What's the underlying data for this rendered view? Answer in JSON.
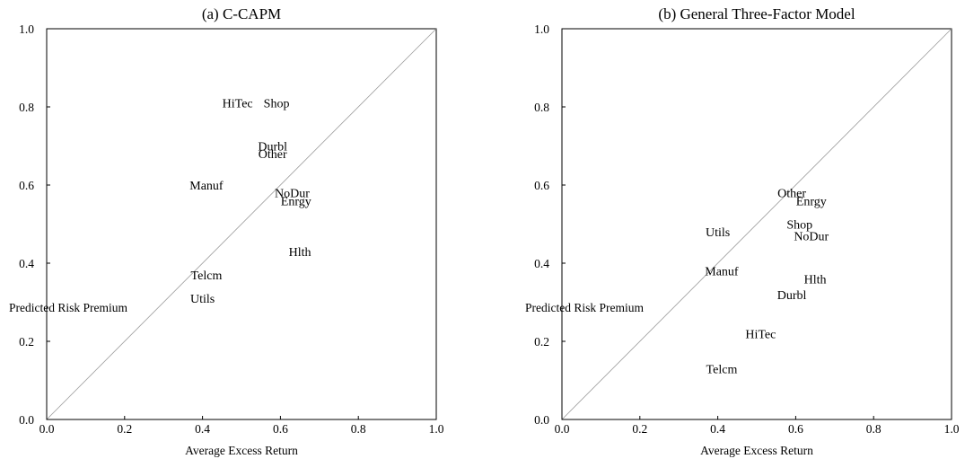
{
  "chart_data": [
    {
      "type": "scatter",
      "title": "(a) C-CAPM",
      "xlabel": "Average Excess Return",
      "ylabel": "Predicted Risk Premium",
      "xlim": [
        0,
        1
      ],
      "ylim": [
        0,
        1
      ],
      "xticks": [
        "0.0",
        "0.2",
        "0.4",
        "0.6",
        "0.8",
        "1.0"
      ],
      "yticks": [
        "0.0",
        "0.2",
        "0.4",
        "0.6",
        "0.8",
        "1.0"
      ],
      "diagonal": true,
      "points": [
        {
          "label": "HiTec",
          "x": 0.49,
          "y": 0.81
        },
        {
          "label": "Shop",
          "x": 0.59,
          "y": 0.81
        },
        {
          "label": "Durbl",
          "x": 0.58,
          "y": 0.7
        },
        {
          "label": "Other",
          "x": 0.58,
          "y": 0.68
        },
        {
          "label": "Manuf",
          "x": 0.41,
          "y": 0.6
        },
        {
          "label": "NoDur",
          "x": 0.63,
          "y": 0.58
        },
        {
          "label": "Enrgy",
          "x": 0.64,
          "y": 0.56
        },
        {
          "label": "Hlth",
          "x": 0.65,
          "y": 0.43
        },
        {
          "label": "Telcm",
          "x": 0.41,
          "y": 0.37
        },
        {
          "label": "Utils",
          "x": 0.4,
          "y": 0.31
        }
      ]
    },
    {
      "type": "scatter",
      "title": "(b) General Three-Factor Model",
      "xlabel": "Average Excess Return",
      "ylabel": "Predicted Risk Premium",
      "xlim": [
        0,
        1
      ],
      "ylim": [
        0,
        1
      ],
      "xticks": [
        "0.0",
        "0.2",
        "0.4",
        "0.6",
        "0.8",
        "1.0"
      ],
      "yticks": [
        "0.0",
        "0.2",
        "0.4",
        "0.6",
        "0.8",
        "1.0"
      ],
      "diagonal": true,
      "points": [
        {
          "label": "Other",
          "x": 0.59,
          "y": 0.58
        },
        {
          "label": "Enrgy",
          "x": 0.64,
          "y": 0.56
        },
        {
          "label": "Utils",
          "x": 0.4,
          "y": 0.48
        },
        {
          "label": "Shop",
          "x": 0.61,
          "y": 0.5
        },
        {
          "label": "NoDur",
          "x": 0.64,
          "y": 0.47
        },
        {
          "label": "Manuf",
          "x": 0.41,
          "y": 0.38
        },
        {
          "label": "Hlth",
          "x": 0.65,
          "y": 0.36
        },
        {
          "label": "Durbl",
          "x": 0.59,
          "y": 0.32
        },
        {
          "label": "HiTec",
          "x": 0.51,
          "y": 0.22
        },
        {
          "label": "Telcm",
          "x": 0.41,
          "y": 0.13
        }
      ]
    }
  ]
}
